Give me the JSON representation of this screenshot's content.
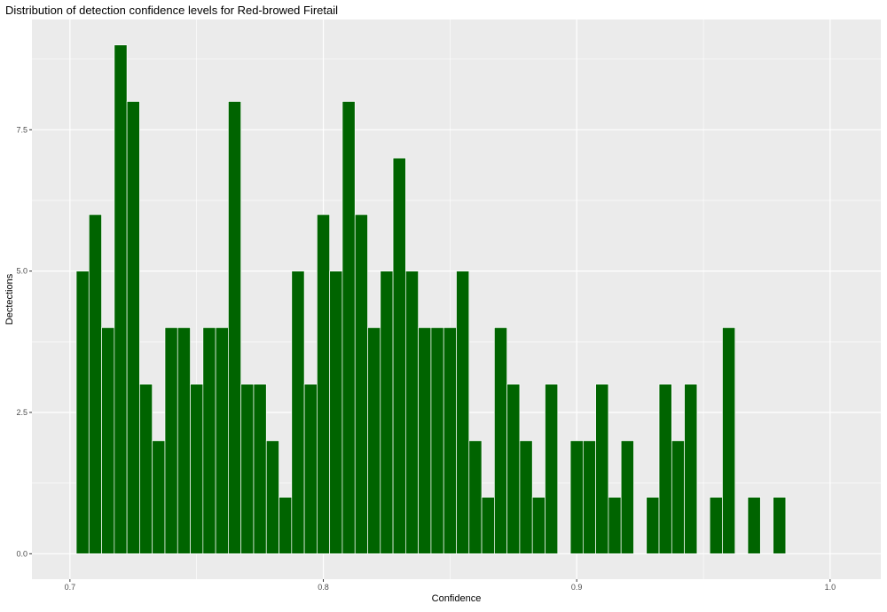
{
  "chart_data": {
    "type": "bar",
    "title": "Distribution of detection confidence levels for Red-browed Firetail",
    "xlabel": "Confidence",
    "ylabel": "Dectections",
    "xlim": [
      0.685,
      1.02
    ],
    "ylim": [
      -0.45,
      9.45
    ],
    "x_ticks": [
      0.7,
      0.8,
      0.9,
      1.0
    ],
    "x_tick_labels": [
      "0.7",
      "0.8",
      "0.9",
      "1.0"
    ],
    "y_ticks": [
      0,
      2.5,
      5,
      7.5
    ],
    "y_tick_labels": [
      "0.0",
      "2.5",
      "5.0",
      "7.5"
    ],
    "bin_width": 0.005,
    "x": [
      0.705,
      0.71,
      0.715,
      0.72,
      0.725,
      0.73,
      0.735,
      0.74,
      0.745,
      0.75,
      0.755,
      0.76,
      0.765,
      0.77,
      0.775,
      0.78,
      0.785,
      0.79,
      0.795,
      0.8,
      0.805,
      0.81,
      0.815,
      0.82,
      0.825,
      0.83,
      0.835,
      0.84,
      0.845,
      0.85,
      0.855,
      0.86,
      0.865,
      0.87,
      0.875,
      0.88,
      0.885,
      0.89,
      0.895,
      0.9,
      0.905,
      0.91,
      0.915,
      0.92,
      0.925,
      0.93,
      0.935,
      0.94,
      0.945,
      0.95,
      0.955,
      0.96,
      0.965,
      0.97,
      0.975,
      0.98
    ],
    "values": [
      5,
      6,
      4,
      9,
      8,
      3,
      2,
      4,
      4,
      3,
      4,
      4,
      8,
      3,
      3,
      2,
      1,
      5,
      3,
      6,
      5,
      8,
      6,
      4,
      5,
      7,
      5,
      4,
      4,
      4,
      5,
      2,
      1,
      4,
      3,
      2,
      1,
      3,
      0,
      2,
      2,
      3,
      1,
      2,
      0,
      1,
      3,
      2,
      3,
      0,
      1,
      4,
      0,
      1,
      0,
      1
    ],
    "bar_color": "#006400",
    "bar_outline": "#ffffff",
    "panel_background": "#ebebeb",
    "grid_color": "#ffffff",
    "grid": true,
    "legend": "none"
  }
}
